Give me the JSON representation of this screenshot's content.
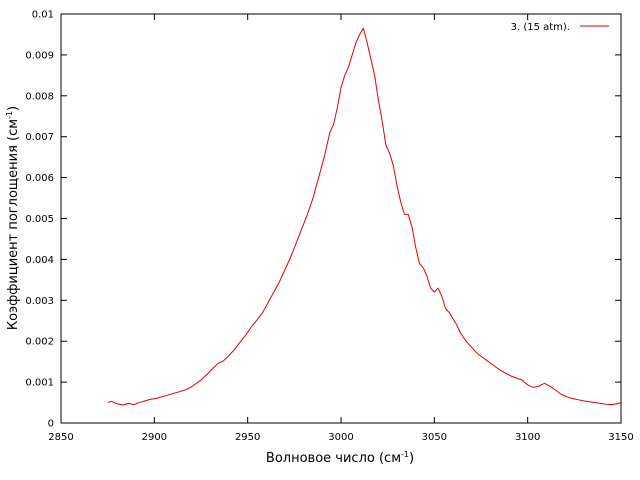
{
  "chart_data": {
    "type": "line",
    "title": "",
    "xlabel": "Волновое число (см",
    "xlabel_sup": "-1",
    "xlabel_end": ")",
    "ylabel": "Коэффициент поглощения (см",
    "ylabel_sup": "-1",
    "ylabel_end": ")",
    "xlim": [
      2850,
      3150
    ],
    "ylim": [
      0,
      0.01
    ],
    "x_ticks": [
      2850,
      2900,
      2950,
      3000,
      3050,
      3100,
      3150
    ],
    "y_ticks": [
      0,
      0.001,
      0.002,
      0.003,
      0.004,
      0.005,
      0.006,
      0.007,
      0.008,
      0.009,
      0.01
    ],
    "grid": false,
    "legend_position": "top-right",
    "series": [
      {
        "name": "3. (15 atm).",
        "color": "#e00000",
        "x": [
          2875,
          2877,
          2880,
          2883,
          2886,
          2889,
          2892,
          2895,
          2898,
          2901,
          2904,
          2907,
          2910,
          2913,
          2916,
          2919,
          2922,
          2925,
          2928,
          2931,
          2934,
          2937,
          2940,
          2943,
          2946,
          2949,
          2952,
          2955,
          2958,
          2961,
          2964,
          2967,
          2970,
          2973,
          2976,
          2979,
          2982,
          2985,
          2988,
          2991,
          2994,
          2996,
          2998,
          3000,
          3002,
          3004,
          3006,
          3008,
          3010,
          3012,
          3014,
          3016,
          3018,
          3020,
          3022,
          3024,
          3026,
          3028,
          3030,
          3032,
          3034,
          3036,
          3038,
          3040,
          3042,
          3044,
          3046,
          3048,
          3050,
          3052,
          3054,
          3056,
          3058,
          3060,
          3062,
          3064,
          3067,
          3070,
          3073,
          3076,
          3079,
          3082,
          3085,
          3088,
          3091,
          3094,
          3097,
          3100,
          3103,
          3106,
          3109,
          3112,
          3115,
          3118,
          3121,
          3124,
          3127,
          3130,
          3133,
          3136,
          3139,
          3142,
          3145,
          3148,
          3150
        ],
        "y": [
          0.0005,
          0.00053,
          0.00047,
          0.00044,
          0.00048,
          0.00045,
          0.0005,
          0.00054,
          0.00058,
          0.0006,
          0.00064,
          0.00068,
          0.00072,
          0.00076,
          0.0008,
          0.00086,
          0.00095,
          0.00105,
          0.00118,
          0.00132,
          0.00145,
          0.00152,
          0.00165,
          0.0018,
          0.00198,
          0.00215,
          0.00235,
          0.00252,
          0.0027,
          0.00295,
          0.0032,
          0.00345,
          0.00375,
          0.00405,
          0.0044,
          0.00475,
          0.0051,
          0.0055,
          0.006,
          0.0065,
          0.0071,
          0.0073,
          0.0077,
          0.0082,
          0.0085,
          0.0087,
          0.009,
          0.0093,
          0.0095,
          0.00965,
          0.0093,
          0.0089,
          0.0085,
          0.0079,
          0.0074,
          0.0068,
          0.0066,
          0.0063,
          0.0058,
          0.0054,
          0.0051,
          0.0051,
          0.0048,
          0.0043,
          0.0039,
          0.0038,
          0.0036,
          0.0033,
          0.0032,
          0.0033,
          0.0031,
          0.0028,
          0.0027,
          0.00255,
          0.0024,
          0.0022,
          0.002,
          0.00185,
          0.0017,
          0.0016,
          0.0015,
          0.0014,
          0.0013,
          0.00122,
          0.00115,
          0.0011,
          0.00105,
          0.00093,
          0.00087,
          0.0009,
          0.00097,
          0.0009,
          0.0008,
          0.0007,
          0.00064,
          0.0006,
          0.00057,
          0.00054,
          0.00052,
          0.0005,
          0.00048,
          0.00046,
          0.00045,
          0.00047,
          0.0005
        ]
      }
    ]
  }
}
